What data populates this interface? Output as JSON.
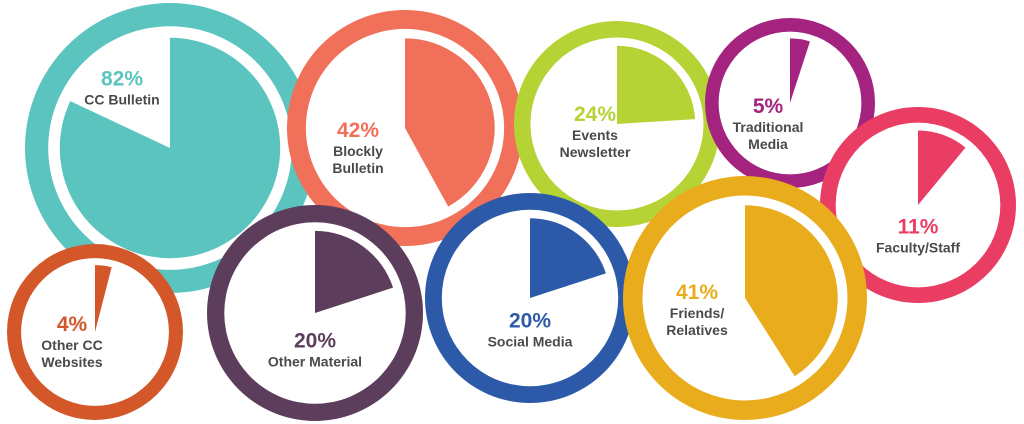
{
  "chart_data": {
    "type": "pie",
    "categories": [
      "CC Bulletin",
      "Blockly Bulletin",
      "Events Newsletter",
      "Traditional Media",
      "Faculty/Staff",
      "Other CC Websites",
      "Other Material",
      "Social Media",
      "Friends/ Relatives"
    ],
    "values": [
      82,
      42,
      24,
      5,
      11,
      4,
      20,
      20,
      41
    ],
    "value_labels": [
      "82%",
      "42%",
      "24%",
      "5%",
      "11%",
      "4%",
      "20%",
      "20%",
      "41%"
    ],
    "colors": [
      "#5bc4bf",
      "#f07059",
      "#b5d334",
      "#a3237e",
      "#e93d64",
      "#d4572a",
      "#5c3e5c",
      "#2d5aa8",
      "#e8ac1c"
    ]
  }
}
